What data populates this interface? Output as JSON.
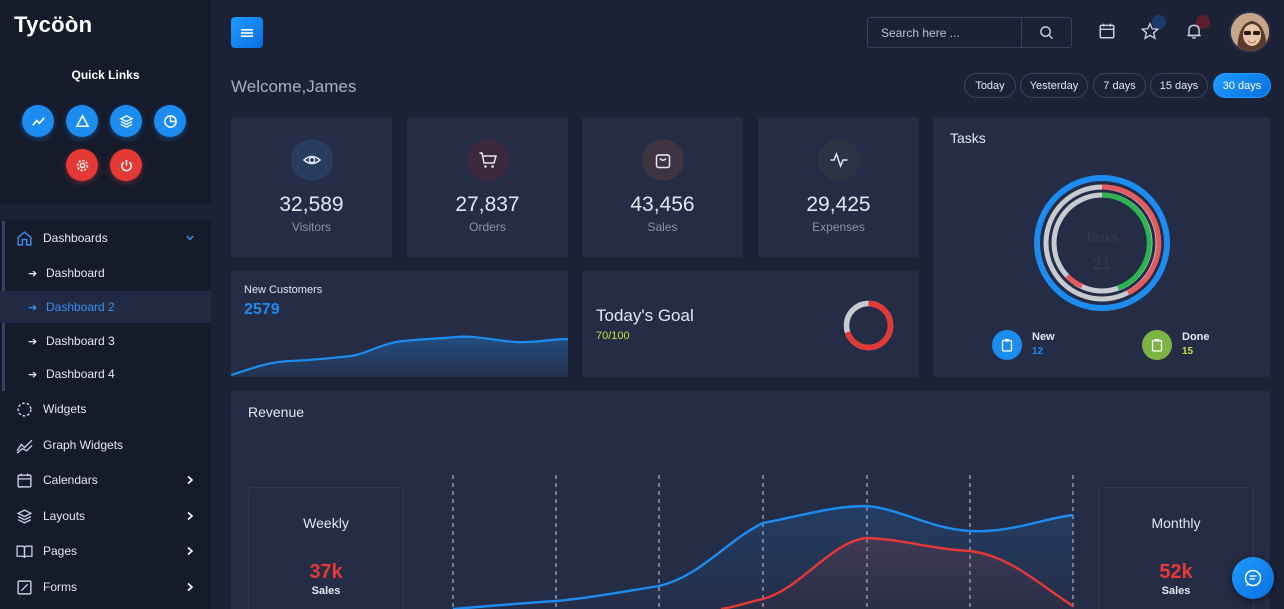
{
  "brand": "Tycöòn",
  "quick_links": {
    "title": "Quick Links",
    "buttons": [
      "line-chart-icon",
      "triangle-icon",
      "layers-icon",
      "pie-chart-icon",
      "gear-icon",
      "power-icon"
    ]
  },
  "nav": {
    "dashboards": "Dashboards",
    "sub": [
      "Dashboard",
      "Dashboard 2",
      "Dashboard 3",
      "Dashboard 4"
    ],
    "active_sub": "Dashboard 2",
    "widgets": "Widgets",
    "graph_widgets": "Graph Widgets",
    "calendars": "Calendars",
    "layouts": "Layouts",
    "pages": "Pages",
    "forms": "Forms"
  },
  "topbar": {
    "search_placeholder": "Search here ..."
  },
  "welcome": "Welcome,James",
  "ranges": [
    "Today",
    "Yesterday",
    "7 days",
    "15 days",
    "30 days"
  ],
  "active_range": "30 days",
  "stats": [
    {
      "value": "32,589",
      "label": "Visitors",
      "icon": "eye-icon",
      "color": "#3b8ff0"
    },
    {
      "value": "27,837",
      "label": "Orders",
      "icon": "cart-icon",
      "color": "#e53935"
    },
    {
      "value": "43,456",
      "label": "Sales",
      "icon": "bag-icon",
      "color": "#f0a070"
    },
    {
      "value": "29,425",
      "label": "Expenses",
      "icon": "activity-icon",
      "color": "#e3e7f2"
    }
  ],
  "new_customers": {
    "title": "New Customers",
    "value": "2579"
  },
  "goal": {
    "title": "Today's Goal",
    "value": "70/100",
    "progress": 0.7
  },
  "tasks": {
    "title": "Tasks",
    "center_label": "Tasks",
    "center_value": "21",
    "legend": [
      {
        "label": "New",
        "value": "12",
        "color": "#1c8cf0"
      },
      {
        "label": "Done",
        "value": "15",
        "color": "#8bc34a"
      }
    ]
  },
  "revenue": {
    "title": "Revenue",
    "weekly": {
      "title": "Weekly",
      "value": "37k",
      "label": "Sales"
    },
    "monthly": {
      "title": "Monthly",
      "value": "52k",
      "label": "Sales"
    }
  },
  "colors": {
    "accent": "#1c8cf0",
    "danger": "#e53935",
    "success": "#8bc34a",
    "goal_text": "#cddc39"
  }
}
